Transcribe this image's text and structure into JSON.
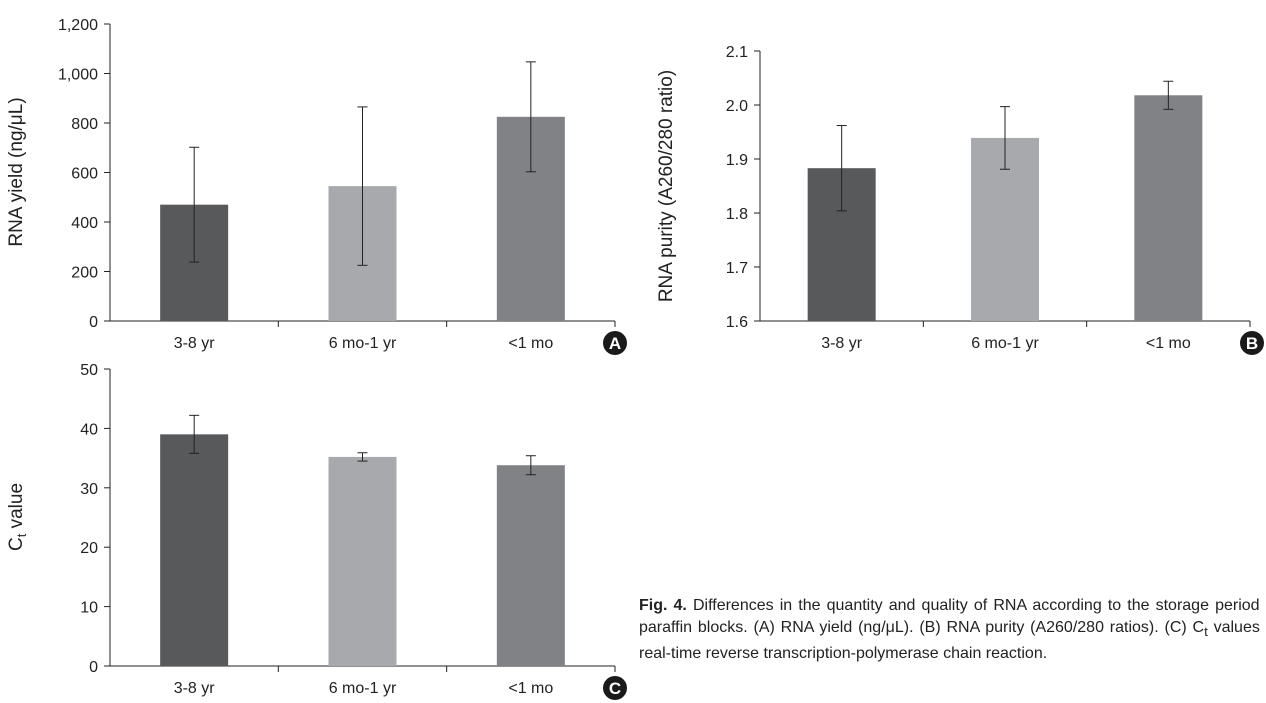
{
  "chart_data": [
    {
      "type": "bar",
      "panel": "A",
      "categories": [
        "3-8 yr",
        "6 mo-1 yr",
        "<1 mo"
      ],
      "values": [
        470,
        545,
        825
      ],
      "errors": [
        232,
        320,
        222
      ],
      "colors": [
        "#58595b",
        "#a7a9ac",
        "#808285"
      ],
      "ylabel": "RNA yield (ng/μL)",
      "ylim": [
        0,
        1200
      ],
      "ytick_labels": [
        "0",
        "200",
        "400",
        "600",
        "800",
        "1,000",
        "1,200"
      ]
    },
    {
      "type": "bar",
      "panel": "B",
      "categories": [
        "3-8 yr",
        "6 mo-1 yr",
        "<1 mo"
      ],
      "values": [
        1.883,
        1.939,
        2.018
      ],
      "errors": [
        0.079,
        0.058,
        0.026
      ],
      "colors": [
        "#58595b",
        "#a7a9ac",
        "#808285"
      ],
      "ylabel": "RNA purity (A260/280 ratio)",
      "ylim": [
        1.6,
        2.1
      ],
      "ytick_labels": [
        "1.6",
        "1.7",
        "1.8",
        "1.9",
        "2.0",
        "2.1"
      ]
    },
    {
      "type": "bar",
      "panel": "C",
      "categories": [
        "3-8 yr",
        "6 mo-1 yr",
        "<1 mo"
      ],
      "values": [
        39,
        35.2,
        33.8
      ],
      "errors": [
        3.2,
        0.7,
        1.6
      ],
      "colors": [
        "#58595b",
        "#a7a9ac",
        "#808285"
      ],
      "ylabel_main": "C",
      "ylabel_sub": "t",
      "ylabel_rest": " value",
      "ylim": [
        0,
        50
      ],
      "ytick_labels": [
        "0",
        "10",
        "20",
        "30",
        "40",
        "50"
      ]
    }
  ],
  "caption": {
    "label": "Fig. 4.",
    "text_1": " Differences in the quantity and quality of RNA according to the storage period of paraffin blocks. (A) RNA yield (ng/μL). (B) RNA purity (A260/280 ratios). (C) C",
    "sub": "t",
    "text_2": " values of real-time reverse transcription-polymerase chain reaction."
  }
}
